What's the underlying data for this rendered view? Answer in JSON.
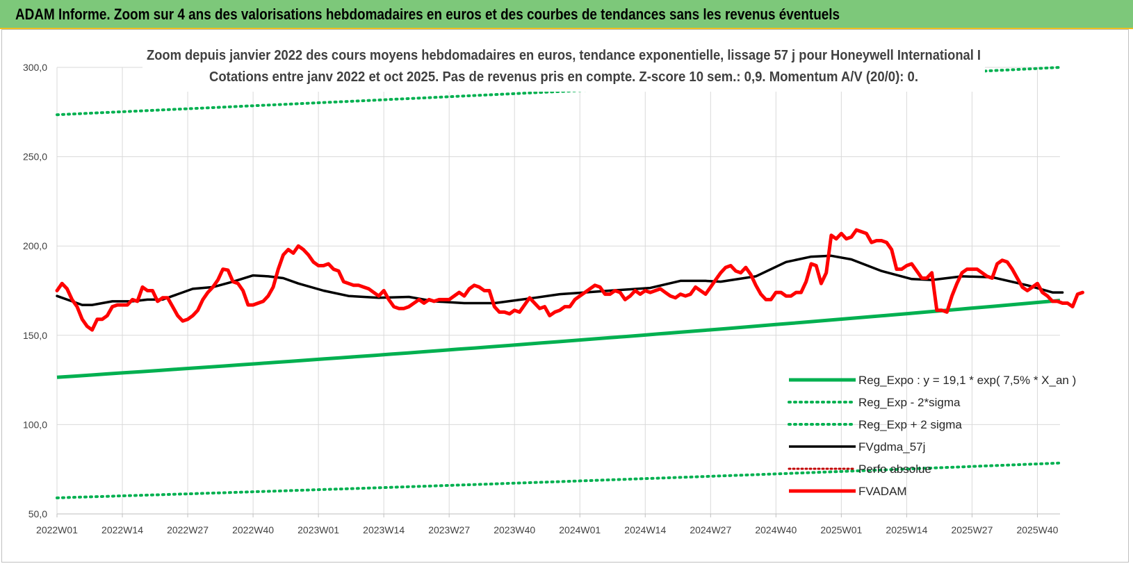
{
  "page_title": "ADAM Informe. Zoom sur 4 ans des valorisations hebdomadaires en euros et des courbes de tendances sans les revenus éventuels",
  "colors": {
    "header_bg": "#7dc87a",
    "trend": "#00b050",
    "smooth": "#000000",
    "price": "#ff0000",
    "perf": "#c00000"
  },
  "chart_data": {
    "type": "line",
    "title_line1": "Zoom depuis janvier 2022 des cours moyens hebdomadaires en euros, tendance exponentielle, lissage 57 j pour Honeywell International I",
    "title_line2": "Cotations entre janv 2022 et oct 2025. Pas de revenus pris en compte. Z-score 10 sem.: 0,9. Momentum A/V (20/0): 0.",
    "ylim": [
      50,
      300
    ],
    "y_ticks": [
      "50,0",
      "100,0",
      "150,0",
      "200,0",
      "250,0",
      "300,0"
    ],
    "x_ticks": [
      "2022W01",
      "2022W14",
      "2022W27",
      "2022W40",
      "2023W01",
      "2023W14",
      "2023W27",
      "2023W40",
      "2024W01",
      "2024W14",
      "2024W27",
      "2024W40",
      "2025W01",
      "2025W14",
      "2025W27",
      "2025W40"
    ],
    "n_weeks": 200,
    "legend": [
      {
        "label": "Reg_Expo : y = 19,1 * exp( 7,5% * X_an )",
        "style": "solid-green"
      },
      {
        "label": "Reg_Exp - 2*sigma",
        "style": "dotted-green"
      },
      {
        "label": "Reg_Exp + 2 sigma",
        "style": "dotted-green"
      },
      {
        "label": "FVgdma_57j",
        "style": "solid-black"
      },
      {
        "label": "Perfo absolue",
        "style": "dotted-red"
      },
      {
        "label": "FVADAM",
        "style": "solid-red"
      }
    ],
    "series": [
      {
        "name": "Reg_Expo",
        "start": 126.5,
        "end": 169.5
      },
      {
        "name": "Reg_Exp - 2*sigma",
        "start": 59.0,
        "end": 78.5
      },
      {
        "name": "Reg_Exp + 2 sigma",
        "start": 273.5,
        "end": 300.0
      },
      {
        "name": "FVgdma_57j",
        "points": [
          [
            0,
            172
          ],
          [
            6,
            169
          ],
          [
            10,
            167
          ],
          [
            14,
            167
          ],
          [
            22,
            169
          ],
          [
            30,
            169
          ],
          [
            36,
            170
          ],
          [
            42,
            170
          ],
          [
            46,
            172
          ],
          [
            54,
            176
          ],
          [
            62,
            177
          ],
          [
            70,
            180
          ],
          [
            78,
            183.5
          ],
          [
            84,
            183
          ],
          [
            90,
            182
          ],
          [
            96,
            179
          ],
          [
            106,
            175
          ],
          [
            116,
            172
          ],
          [
            128,
            171
          ],
          [
            140,
            171.5
          ],
          [
            150,
            169
          ],
          [
            162,
            168
          ],
          [
            174,
            168
          ],
          [
            190,
            171
          ],
          [
            200,
            173
          ],
          [
            210,
            174
          ],
          [
            220,
            175
          ],
          [
            236,
            176.5
          ],
          [
            248,
            180.5
          ],
          [
            258,
            180.5
          ],
          [
            264,
            180
          ],
          [
            278,
            183
          ],
          [
            290,
            191
          ],
          [
            300,
            194
          ],
          [
            308,
            194.5
          ],
          [
            316,
            192.5
          ],
          [
            328,
            186
          ],
          [
            340,
            181.5
          ],
          [
            348,
            181
          ],
          [
            360,
            183
          ],
          [
            372,
            182.5
          ],
          [
            386,
            178
          ],
          [
            396,
            174
          ],
          [
            400,
            174
          ]
        ]
      },
      {
        "name": "FVADAM",
        "points": [
          [
            0,
            175
          ],
          [
            2,
            179
          ],
          [
            4,
            176
          ],
          [
            6,
            170
          ],
          [
            8,
            166
          ],
          [
            10,
            159
          ],
          [
            12,
            155
          ],
          [
            14,
            153
          ],
          [
            16,
            159
          ],
          [
            18,
            159
          ],
          [
            20,
            161
          ],
          [
            22,
            166
          ],
          [
            24,
            167
          ],
          [
            26,
            167
          ],
          [
            28,
            167
          ],
          [
            30,
            170
          ],
          [
            32,
            169
          ],
          [
            34,
            177
          ],
          [
            36,
            175
          ],
          [
            38,
            175
          ],
          [
            40,
            169
          ],
          [
            42,
            171
          ],
          [
            44,
            171
          ],
          [
            46,
            166
          ],
          [
            48,
            161
          ],
          [
            50,
            158
          ],
          [
            52,
            159
          ],
          [
            54,
            161
          ],
          [
            56,
            164
          ],
          [
            58,
            170
          ],
          [
            60,
            174
          ],
          [
            62,
            177
          ],
          [
            64,
            181
          ],
          [
            66,
            187
          ],
          [
            68,
            186.5
          ],
          [
            70,
            180
          ],
          [
            72,
            179
          ],
          [
            74,
            175
          ],
          [
            76,
            167
          ],
          [
            78,
            167
          ],
          [
            80,
            168
          ],
          [
            82,
            169
          ],
          [
            84,
            172
          ],
          [
            86,
            177
          ],
          [
            88,
            187
          ],
          [
            90,
            195
          ],
          [
            92,
            198
          ],
          [
            94,
            196
          ],
          [
            96,
            200
          ],
          [
            98,
            198
          ],
          [
            100,
            195
          ],
          [
            102,
            191
          ],
          [
            104,
            189
          ],
          [
            106,
            189
          ],
          [
            108,
            190
          ],
          [
            110,
            187
          ],
          [
            112,
            186
          ],
          [
            114,
            180
          ],
          [
            116,
            179
          ],
          [
            118,
            178
          ],
          [
            120,
            178
          ],
          [
            122,
            177
          ],
          [
            124,
            176
          ],
          [
            126,
            174
          ],
          [
            128,
            172
          ],
          [
            130,
            175
          ],
          [
            132,
            170
          ],
          [
            134,
            166
          ],
          [
            136,
            165
          ],
          [
            138,
            165
          ],
          [
            140,
            166
          ],
          [
            142,
            168
          ],
          [
            144,
            170
          ],
          [
            146,
            168
          ],
          [
            148,
            170
          ],
          [
            150,
            169
          ],
          [
            152,
            170
          ],
          [
            154,
            170
          ],
          [
            156,
            170
          ],
          [
            158,
            172
          ],
          [
            160,
            174
          ],
          [
            162,
            172
          ],
          [
            164,
            176
          ],
          [
            166,
            178
          ],
          [
            168,
            177
          ],
          [
            170,
            175
          ],
          [
            172,
            175
          ],
          [
            174,
            166
          ],
          [
            176,
            163
          ],
          [
            178,
            163
          ],
          [
            180,
            162
          ],
          [
            182,
            164
          ],
          [
            184,
            163
          ],
          [
            186,
            167
          ],
          [
            188,
            171
          ],
          [
            190,
            168
          ],
          [
            192,
            165
          ],
          [
            194,
            166
          ],
          [
            196,
            161
          ],
          [
            198,
            163
          ],
          [
            200,
            164
          ],
          [
            202,
            166
          ],
          [
            204,
            166
          ],
          [
            206,
            170
          ],
          [
            208,
            172
          ],
          [
            210,
            174
          ],
          [
            212,
            176
          ],
          [
            214,
            178
          ],
          [
            216,
            177
          ],
          [
            218,
            173
          ],
          [
            220,
            173
          ],
          [
            222,
            175
          ],
          [
            224,
            174
          ],
          [
            226,
            170
          ],
          [
            228,
            172
          ],
          [
            230,
            175
          ],
          [
            232,
            173
          ],
          [
            234,
            175
          ],
          [
            236,
            174
          ],
          [
            238,
            175
          ],
          [
            240,
            176
          ],
          [
            242,
            174
          ],
          [
            244,
            172
          ],
          [
            246,
            171
          ],
          [
            248,
            173
          ],
          [
            250,
            172
          ],
          [
            252,
            173
          ],
          [
            254,
            177
          ],
          [
            256,
            175
          ],
          [
            258,
            173
          ],
          [
            260,
            177
          ],
          [
            262,
            181
          ],
          [
            264,
            185
          ],
          [
            266,
            188
          ],
          [
            268,
            189
          ],
          [
            270,
            186
          ],
          [
            272,
            185
          ],
          [
            274,
            188
          ],
          [
            276,
            184
          ],
          [
            278,
            178
          ],
          [
            280,
            173
          ],
          [
            282,
            170
          ],
          [
            284,
            170
          ],
          [
            286,
            174
          ],
          [
            288,
            174
          ],
          [
            290,
            172
          ],
          [
            292,
            172
          ],
          [
            294,
            174
          ],
          [
            296,
            174
          ],
          [
            298,
            180
          ],
          [
            300,
            190
          ],
          [
            302,
            189
          ],
          [
            304,
            179
          ],
          [
            306,
            185
          ],
          [
            308,
            206
          ],
          [
            310,
            204
          ],
          [
            312,
            207
          ],
          [
            314,
            204
          ],
          [
            316,
            205
          ],
          [
            318,
            209
          ],
          [
            320,
            208
          ],
          [
            322,
            207
          ],
          [
            324,
            202
          ],
          [
            326,
            203
          ],
          [
            328,
            203
          ],
          [
            330,
            202
          ],
          [
            332,
            198
          ],
          [
            334,
            187
          ],
          [
            336,
            187
          ],
          [
            338,
            189
          ],
          [
            340,
            190
          ],
          [
            342,
            186
          ],
          [
            344,
            182
          ],
          [
            346,
            182
          ],
          [
            348,
            185
          ],
          [
            350,
            164
          ],
          [
            352,
            164
          ],
          [
            354,
            163
          ],
          [
            356,
            172
          ],
          [
            358,
            179
          ],
          [
            360,
            185
          ],
          [
            362,
            187
          ],
          [
            364,
            187
          ],
          [
            366,
            187
          ],
          [
            368,
            185
          ],
          [
            370,
            183
          ],
          [
            372,
            182
          ],
          [
            374,
            190
          ],
          [
            376,
            192
          ],
          [
            378,
            191
          ],
          [
            380,
            187
          ],
          [
            382,
            182
          ],
          [
            384,
            177
          ],
          [
            386,
            175
          ],
          [
            388,
            177
          ],
          [
            390,
            179
          ],
          [
            392,
            174
          ],
          [
            394,
            172
          ],
          [
            396,
            169
          ],
          [
            398,
            169
          ],
          [
            400,
            168
          ],
          [
            402,
            168
          ],
          [
            404,
            166
          ],
          [
            406,
            173
          ],
          [
            408,
            174
          ]
        ]
      }
    ]
  }
}
